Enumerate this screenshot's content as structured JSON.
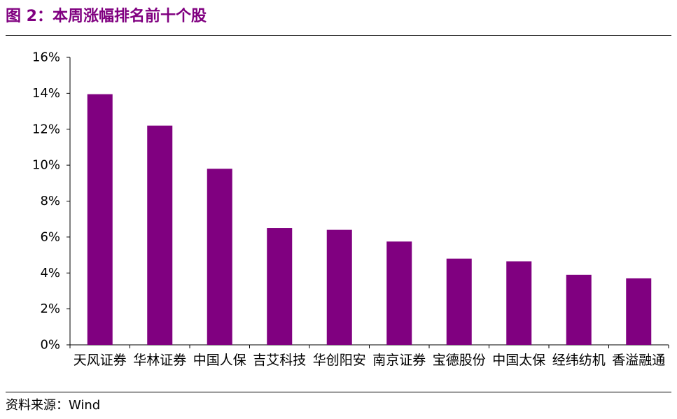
{
  "header": {
    "figure_label": "图 2：",
    "title": "本周涨幅排名前十个股"
  },
  "source": {
    "label": "资料来源：",
    "value": "Wind"
  },
  "colors": {
    "bar": "#800080",
    "title": "#800080",
    "axis": "#000000"
  },
  "chart_data": {
    "type": "bar",
    "categories": [
      "天风证券",
      "华林证券",
      "中国人保",
      "吉艾科技",
      "华创阳安",
      "南京证券",
      "宝德股份",
      "中国太保",
      "经纬纺机",
      "香溢融通"
    ],
    "values": [
      13.95,
      12.2,
      9.8,
      6.5,
      6.4,
      5.75,
      4.8,
      4.65,
      3.9,
      3.7
    ],
    "y_ticks": [
      "0%",
      "2%",
      "4%",
      "6%",
      "8%",
      "10%",
      "12%",
      "14%",
      "16%"
    ],
    "ylim": [
      0,
      16
    ],
    "unit": "%",
    "grid": false,
    "legend": "none"
  }
}
